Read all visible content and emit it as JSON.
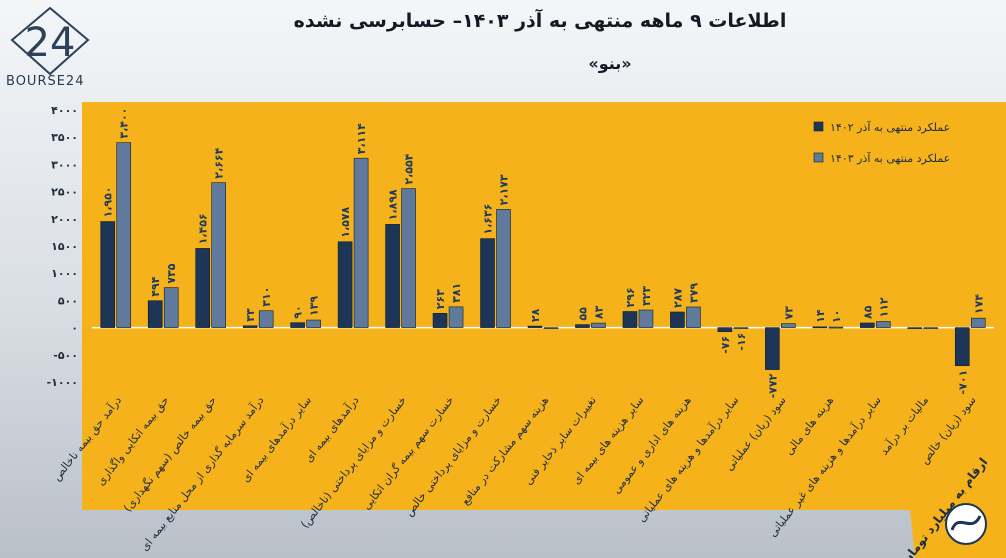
{
  "header": {
    "title": "اطلاعات ۹ ماهه منتهی به آذر ۱۴۰۳– حسابرسی نشده",
    "subtitle": "«بنو»"
  },
  "logo": {
    "mark": "24",
    "text": "BOURSE24"
  },
  "colors": {
    "panel": "#f6b21a",
    "series1": "#1d3556",
    "series2": "#5f7a9c",
    "axis": "#ffffff"
  },
  "chart_data": {
    "type": "bar",
    "ylim": [
      -1000,
      4000
    ],
    "yticks": [
      -1000,
      -500,
      0,
      500,
      1000,
      1500,
      2000,
      2500,
      3000,
      3500,
      4000
    ],
    "ytick_labels": [
      "-۱۰۰۰",
      "-۵۰۰",
      "۰",
      "۵۰۰",
      "۱۰۰۰",
      "۱۵۰۰",
      "۲۰۰۰",
      "۲۵۰۰",
      "۳۰۰۰",
      "۳۵۰۰",
      "۴۰۰۰"
    ],
    "legend_position": "top-right",
    "unit_note": "ارقام به میلیارد تومان",
    "categories": [
      "درآمد حق بیمه ناخالص",
      "حق بیمه اتکایی واگذاری",
      "حق بیمه خالص (سهم نگهداری)",
      "درآمد سرمایه گذاری از محل منابع بیمه ای",
      "سایر درآمدهای بیمه ای",
      "درآمدهای بیمه ای",
      "خسارت و مزایای پرداختی (ناخالص)",
      "خسارت سهم بیمه گران اتکایی",
      "خسارت و مزایای پرداختی خالص",
      "هزینه سهم مشارکت در منافع",
      "تغییرات سایر ذخایر فنی",
      "سایر هزینه های بیمه ای",
      "هزینه های اداری و عمومی",
      "سایر درآمدها و هزینه های عملیاتی",
      "سود (زیان) عملیاتی",
      "هزینه های مالی",
      "سایر درآمدها و هزینه های غیر عملیاتی",
      "مالیات بر درآمد",
      "سود (زیان) خالص"
    ],
    "series": [
      {
        "name": "عملکرد منتهی به آذر ۱۴۰۲",
        "values": [
          1950,
          494,
          1456,
          33,
          90,
          1578,
          1898,
          263,
          1636,
          28,
          55,
          296,
          287,
          -76,
          -772,
          14,
          85,
          0,
          -701
        ],
        "labels": [
          "۱،۹۵۰",
          "۴۹۴",
          "۱،۴۵۶",
          "۳۳",
          "۹۰",
          "۱،۵۷۸",
          "۱،۸۹۸",
          "۲۶۳",
          "۱،۶۳۶",
          "۲۸",
          "۵۵",
          "۲۹۶",
          "۲۸۷",
          "-۷۶",
          "-۷۷۲",
          "۱۴",
          "۸۵",
          "",
          "-۷۰۱"
        ]
      },
      {
        "name": "عملکرد منتهی به آذر ۱۴۰۳",
        "values": [
          3400,
          735,
          2664,
          310,
          139,
          3114,
          2554,
          381,
          2173,
          0,
          83,
          323,
          379,
          -16,
          73,
          10,
          112,
          0,
          174
        ],
        "labels": [
          "۳،۴۰۰",
          "۷۳۵",
          "۲،۶۶۴",
          "۳۱۰",
          "۱۳۹",
          "۳،۱۱۴",
          "۲،۵۵۴",
          "۳۸۱",
          "۲،۱۷۳",
          "",
          "۸۳",
          "۳۲۳",
          "۳۷۹",
          "-۱۶",
          "۷۳",
          "۱۰",
          "۱۱۲",
          "",
          "۱۷۴"
        ]
      }
    ]
  }
}
